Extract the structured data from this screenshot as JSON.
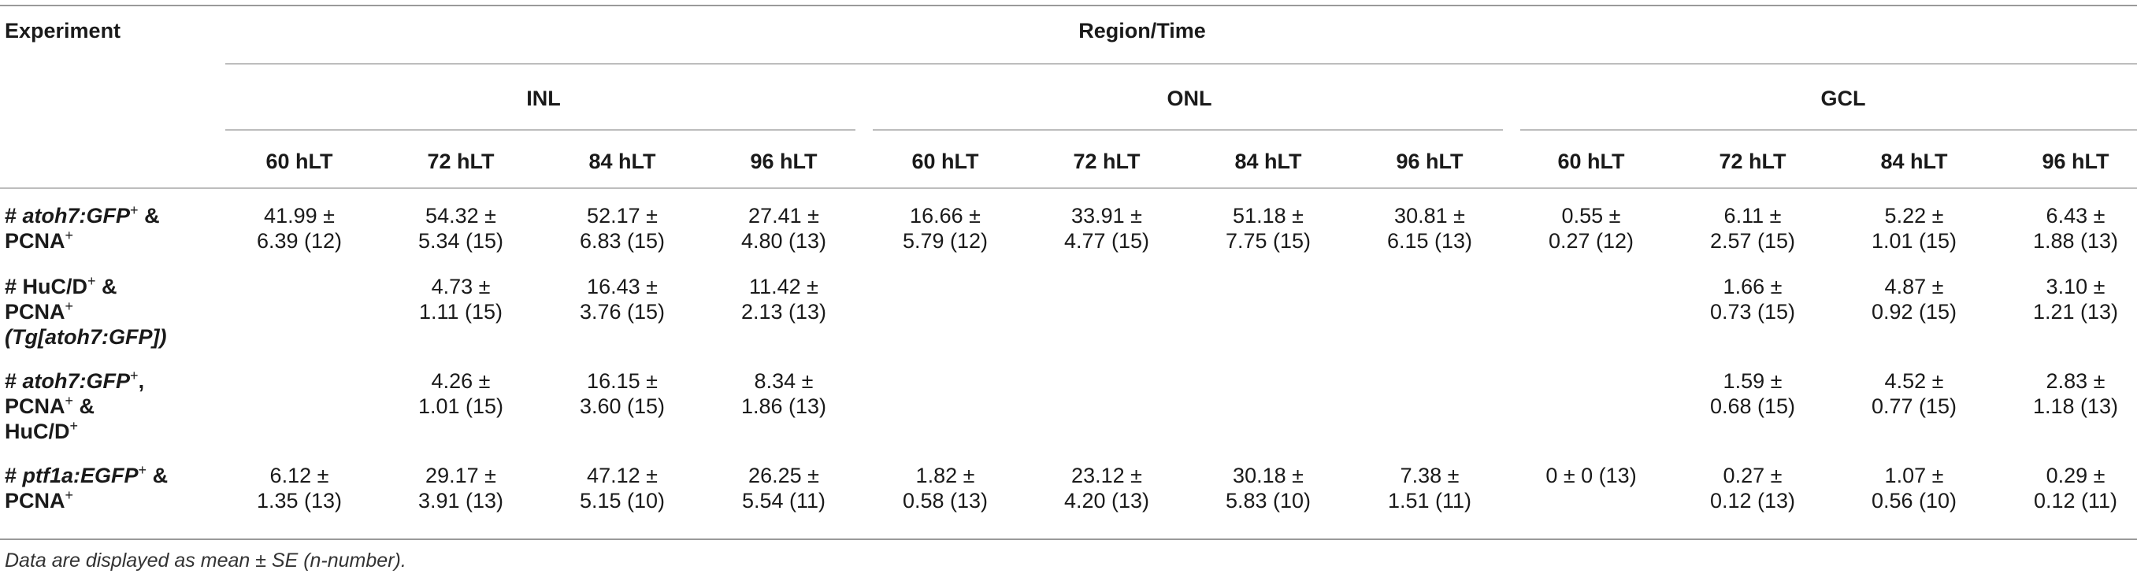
{
  "header": {
    "experiment_label": "Experiment",
    "region_time_label": "Region/Time",
    "regions": [
      "INL",
      "ONL",
      "GCL"
    ],
    "times": [
      "60 hLT",
      "72 hLT",
      "84 hLT",
      "96 hLT"
    ]
  },
  "rows": [
    {
      "label_parts": [
        "# ",
        "atoh7:GFP",
        "+",
        " &",
        "PCNA",
        "+"
      ],
      "values": [
        [
          "41.99 ±",
          "6.39 (12)"
        ],
        [
          "54.32 ±",
          "5.34 (15)"
        ],
        [
          "52.17 ±",
          "6.83 (15)"
        ],
        [
          "27.41 ±",
          "4.80 (13)"
        ],
        [
          "16.66 ±",
          "5.79 (12)"
        ],
        [
          "33.91 ±",
          "4.77 (15)"
        ],
        [
          "51.18 ±",
          "7.75 (15)"
        ],
        [
          "30.81 ±",
          "6.15 (13)"
        ],
        [
          "0.55 ±",
          "0.27 (12)"
        ],
        [
          "6.11 ±",
          "2.57 (15)"
        ],
        [
          "5.22 ±",
          "1.01 (15)"
        ],
        [
          "6.43 ±",
          "1.88 (13)"
        ]
      ]
    },
    {
      "label_parts": [
        "# HuC/D",
        "+",
        " &",
        "PCNA",
        "+",
        "(Tg[atoh7:GFP])"
      ],
      "values": [
        [
          "",
          ""
        ],
        [
          "4.73 ±",
          "1.11 (15)"
        ],
        [
          "16.43 ±",
          "3.76 (15)"
        ],
        [
          "11.42 ±",
          "2.13 (13)"
        ],
        [
          "",
          ""
        ],
        [
          "",
          ""
        ],
        [
          "",
          ""
        ],
        [
          "",
          ""
        ],
        [
          "",
          ""
        ],
        [
          "1.66 ±",
          "0.73 (15)"
        ],
        [
          "4.87 ±",
          "0.92 (15)"
        ],
        [
          "3.10 ±",
          "1.21 (13)"
        ]
      ]
    },
    {
      "label_parts": [
        "# ",
        "atoh7:GFP",
        "+",
        ",",
        "PCNA",
        "+",
        " &",
        "HuC/D",
        "+"
      ],
      "values": [
        [
          "",
          ""
        ],
        [
          "4.26 ±",
          "1.01 (15)"
        ],
        [
          "16.15 ±",
          "3.60 (15)"
        ],
        [
          "8.34 ±",
          "1.86 (13)"
        ],
        [
          "",
          ""
        ],
        [
          "",
          ""
        ],
        [
          "",
          ""
        ],
        [
          "",
          ""
        ],
        [
          "",
          ""
        ],
        [
          "1.59 ±",
          "0.68 (15)"
        ],
        [
          "4.52 ±",
          "0.77 (15)"
        ],
        [
          "2.83 ±",
          "1.18 (13)"
        ]
      ]
    },
    {
      "label_parts": [
        "# ",
        "ptf1a:EGFP",
        "+",
        " &",
        "PCNA",
        "+"
      ],
      "values": [
        [
          "6.12 ±",
          "1.35 (13)"
        ],
        [
          "29.17 ±",
          "3.91 (13)"
        ],
        [
          "47.12 ±",
          "5.15 (10)"
        ],
        [
          "26.25 ±",
          "5.54 (11)"
        ],
        [
          "1.82 ±",
          "0.58 (13)"
        ],
        [
          "23.12 ±",
          "4.20 (13)"
        ],
        [
          "30.18 ±",
          "5.83 (10)"
        ],
        [
          "7.38 ±",
          "1.51 (11)"
        ],
        [
          "0 ± 0 (13)",
          ""
        ],
        [
          "0.27 ±",
          "0.12 (13)"
        ],
        [
          "1.07 ±",
          "0.56 (10)"
        ],
        [
          "0.29 ±",
          "0.12 (11)"
        ]
      ]
    }
  ],
  "footnote": "Data are displayed as mean ± SE (n-number)."
}
